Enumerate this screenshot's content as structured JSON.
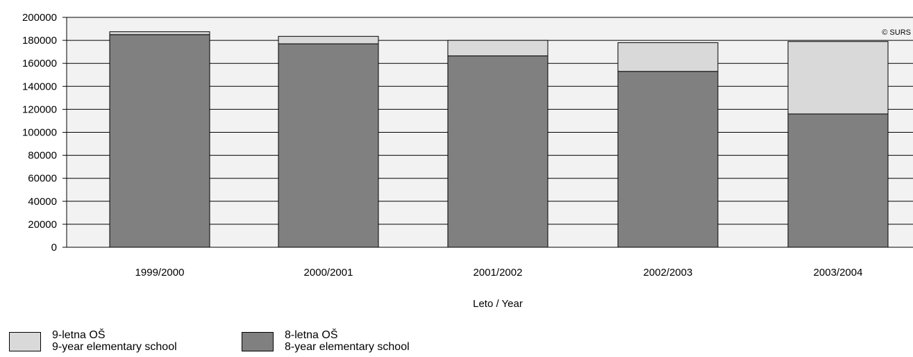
{
  "chart_data": {
    "type": "bar",
    "stacked": true,
    "categories": [
      "1999/2000",
      "2000/2001",
      "2001/2002",
      "2002/2003",
      "2003/2004"
    ],
    "series": [
      {
        "name": "8-letna OŠ / 8-year elementary school",
        "color": "#808080",
        "values": [
          185000,
          177000,
          166500,
          153000,
          116000
        ]
      },
      {
        "name": "9-letna OŠ / 9-year elementary school",
        "color": "#d9d9d9",
        "values": [
          2500,
          6500,
          13500,
          25000,
          63000
        ]
      }
    ],
    "xlabel": "Leto / Year",
    "ylabel": "",
    "ylim": [
      0,
      200000
    ],
    "yticks": [
      0,
      20000,
      40000,
      60000,
      80000,
      100000,
      120000,
      140000,
      160000,
      180000,
      200000
    ],
    "grid": true,
    "legend_position": "bottom-left",
    "watermark": "© SURS",
    "plot_background": "#f2f2f2"
  },
  "legend": [
    {
      "line1": "9-letna OŠ",
      "line2": "9-year elementary school",
      "color": "#d9d9d9"
    },
    {
      "line1": "8-letna OŠ",
      "line2": "8-year elementary school",
      "color": "#808080"
    }
  ]
}
